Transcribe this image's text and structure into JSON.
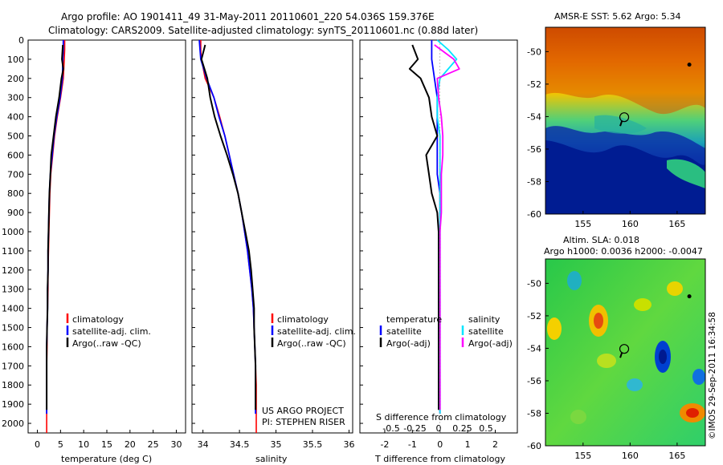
{
  "header": {
    "line1": "Argo profile: AO 1901411_49 31-May-2011 20110601_220 54.036S 159.376E",
    "line2": "Climatology: CARS2009. Satellite-adjusted climatology: synTS_20110601.nc (0.88d later)"
  },
  "colors": {
    "climatology": "#ff0000",
    "satellite": "#0000ff",
    "argo": "#000000",
    "sal_satellite": "#00e5ff",
    "sal_argo": "#ff00ff"
  },
  "chart_data": [
    {
      "type": "line",
      "title": "",
      "xlabel": "temperature (deg C)",
      "ylabel": "",
      "xlim": [
        -2,
        32
      ],
      "ylim": [
        2050,
        0
      ],
      "xticks": [
        "0",
        "5",
        "10",
        "15",
        "20",
        "25",
        "30"
      ],
      "yticks": [
        "0",
        "100",
        "200",
        "300",
        "400",
        "500",
        "600",
        "700",
        "800",
        "900",
        "1000",
        "1100",
        "1200",
        "1300",
        "1400",
        "1500",
        "1600",
        "1700",
        "1800",
        "1900",
        "2000"
      ],
      "legend": [
        "climatology",
        "satellite-adj. clim.",
        "Argo(..raw -QC)"
      ],
      "series": [
        {
          "name": "climatology",
          "x": [
            5.9,
            5.9,
            5.8,
            5.6,
            5.0,
            4.3,
            3.7,
            3.3,
            2.9,
            2.7,
            2.6,
            2.5,
            2.4,
            2.3,
            2.3,
            2.2,
            2.1,
            2.1,
            2.0,
            2.0,
            2.0
          ],
          "y": [
            0,
            50,
            100,
            200,
            300,
            400,
            500,
            600,
            700,
            800,
            900,
            1000,
            1100,
            1200,
            1300,
            1400,
            1500,
            1600,
            1700,
            1800,
            2050
          ]
        },
        {
          "name": "satellite-adj. clim.",
          "x": [
            5.6,
            5.6,
            5.5,
            5.4,
            4.9,
            4.2,
            3.6,
            3.2,
            2.8,
            2.6,
            2.5,
            2.4,
            2.3,
            2.3,
            2.2,
            2.2,
            2.1,
            2.0,
            2.0,
            2.0,
            2.0
          ],
          "y": [
            0,
            50,
            100,
            200,
            300,
            400,
            500,
            600,
            700,
            800,
            900,
            1000,
            1100,
            1200,
            1300,
            1400,
            1500,
            1600,
            1700,
            1800,
            1950
          ]
        },
        {
          "name": "Argo(..raw -QC)",
          "x": [
            5.5,
            5.3,
            5.6,
            5.2,
            4.7,
            4.0,
            3.5,
            3.0,
            2.8,
            2.6,
            2.5,
            2.4,
            2.3,
            2.3,
            2.2,
            2.2,
            2.1,
            2.0,
            2.0,
            2.0
          ],
          "y": [
            25,
            100,
            150,
            200,
            300,
            400,
            500,
            600,
            700,
            800,
            900,
            1000,
            1100,
            1200,
            1300,
            1400,
            1500,
            1600,
            1700,
            1930
          ]
        }
      ]
    },
    {
      "type": "line",
      "title": "",
      "xlabel": "salinity",
      "ylabel": "",
      "xlim": [
        33.85,
        36.05
      ],
      "ylim": [
        2050,
        0
      ],
      "xticks": [
        "34",
        "34.5",
        "35",
        "35.5",
        "36"
      ],
      "legend": [
        "climatology",
        "satellite-adj. clim.",
        "Argo(..raw -QC)"
      ],
      "annotations": [
        "US ARGO PROJECT",
        "PI: STEPHEN RISER"
      ],
      "series": [
        {
          "name": "climatology",
          "x": [
            33.97,
            33.97,
            33.98,
            34.03,
            34.15,
            34.23,
            34.3,
            34.36,
            34.42,
            34.48,
            34.53,
            34.57,
            34.61,
            34.64,
            34.67,
            34.69,
            34.7,
            34.71,
            34.72,
            34.73,
            34.73
          ],
          "y": [
            0,
            50,
            100,
            200,
            300,
            400,
            500,
            600,
            700,
            800,
            900,
            1000,
            1100,
            1200,
            1300,
            1400,
            1500,
            1600,
            1700,
            1800,
            2050
          ]
        },
        {
          "name": "satellite-adj. clim.",
          "x": [
            33.95,
            33.96,
            33.97,
            34.05,
            34.15,
            34.22,
            34.3,
            34.36,
            34.42,
            34.48,
            34.53,
            34.57,
            34.61,
            34.64,
            34.67,
            34.69,
            34.7,
            34.71,
            34.72,
            34.72,
            34.72
          ],
          "y": [
            0,
            50,
            100,
            200,
            300,
            400,
            500,
            600,
            700,
            800,
            900,
            1000,
            1100,
            1200,
            1300,
            1400,
            1500,
            1600,
            1700,
            1800,
            1950
          ]
        },
        {
          "name": "Argo(..raw -QC)",
          "x": [
            34.03,
            33.98,
            34.02,
            34.06,
            34.1,
            34.16,
            34.24,
            34.33,
            34.41,
            34.48,
            34.53,
            34.58,
            34.63,
            34.66,
            34.68,
            34.7,
            34.7,
            34.71,
            34.72,
            34.72
          ],
          "y": [
            25,
            100,
            150,
            200,
            300,
            400,
            500,
            600,
            700,
            800,
            900,
            1000,
            1100,
            1200,
            1300,
            1400,
            1500,
            1600,
            1700,
            1930
          ]
        }
      ]
    },
    {
      "type": "line",
      "title": "",
      "xlabel": "T difference from climatology",
      "xlabel2": "S difference from climatology",
      "ylabel": "",
      "xlim": [
        -2.9,
        2.8
      ],
      "ylim": [
        2050,
        0
      ],
      "xticks": [
        "-2",
        "-1",
        "0",
        "1",
        "2"
      ],
      "xticks2": [
        "-0.5",
        "-0.25",
        "0",
        "0.25",
        "0.5"
      ],
      "legend_titles": [
        "temperature",
        "salinity"
      ],
      "legend": [
        "satellite",
        "Argo(-adj)",
        "satellite",
        "Argo(-adj)"
      ],
      "series": [
        {
          "name": "satellite",
          "x": [
            -0.3,
            -0.3,
            -0.3,
            -0.2,
            -0.1,
            -0.1,
            -0.1,
            -0.1,
            -0.1,
            0,
            0,
            0,
            0,
            0,
            0,
            0,
            0,
            0,
            0,
            0
          ],
          "y": [
            0,
            50,
            100,
            200,
            300,
            400,
            500,
            600,
            700,
            800,
            900,
            1000,
            1100,
            1200,
            1300,
            1400,
            1500,
            1600,
            1700,
            1950
          ]
        },
        {
          "name": "Argo(-adj)",
          "x": [
            -1.0,
            -0.8,
            -1.1,
            -0.7,
            -0.4,
            -0.3,
            -0.1,
            -0.5,
            -0.4,
            -0.3,
            -0.1,
            -0.05,
            -0.05,
            -0.05,
            -0.05,
            -0.05,
            -0.05,
            -0.05,
            -0.05,
            -0.05
          ],
          "y": [
            25,
            100,
            150,
            200,
            300,
            400,
            500,
            600,
            700,
            800,
            900,
            1000,
            1100,
            1200,
            1300,
            1400,
            1500,
            1600,
            1700,
            1930
          ]
        },
        {
          "name": "satellite",
          "x": [
            -0.1,
            0.3,
            0.6,
            0.0,
            -0.1,
            -0.1,
            0.0,
            0.0,
            0.0,
            0.0,
            0.0,
            0.0,
            0.0,
            0.0,
            0.0,
            0.0,
            0.0,
            0.0,
            0.0,
            0.0
          ],
          "y": [
            0,
            50,
            100,
            200,
            300,
            400,
            500,
            600,
            700,
            800,
            900,
            1000,
            1100,
            1200,
            1300,
            1400,
            1500,
            1600,
            1700,
            1950
          ]
        },
        {
          "name": "Argo(-adj)",
          "x": [
            -0.2,
            0.5,
            0.7,
            -0.1,
            -0.05,
            0.05,
            0.1,
            0.1,
            0.05,
            0.05,
            0.05,
            0.0,
            0.0,
            0.0,
            0.0,
            0.0,
            0.0,
            0.0,
            0.0,
            0.0
          ],
          "y": [
            25,
            100,
            150,
            200,
            300,
            400,
            500,
            600,
            700,
            800,
            900,
            1000,
            1100,
            1200,
            1300,
            1400,
            1500,
            1600,
            1700,
            1930
          ]
        }
      ]
    },
    {
      "type": "heatmap",
      "title": "AMSR-E SST: 5.62 Argo: 5.34",
      "xlim": [
        151,
        168
      ],
      "ylim": [
        -60,
        -48.5
      ],
      "xticks": [
        "155",
        "160",
        "165"
      ],
      "yticks": [
        "-50",
        "-52",
        "-54",
        "-56",
        "-58",
        "-60"
      ],
      "float_position": [
        159.376,
        -54.036
      ]
    },
    {
      "type": "heatmap",
      "title": "Altim. SLA: 0.018",
      "subtitle": "Argo h1000: 0.0036 h2000: -0.0047",
      "xlim": [
        151,
        168
      ],
      "ylim": [
        -60,
        -48.5
      ],
      "xticks": [
        "155",
        "160",
        "165"
      ],
      "yticks": [
        "-50",
        "-52",
        "-54",
        "-56",
        "-58",
        "-60"
      ],
      "float_position": [
        159.376,
        -54.036
      ]
    }
  ],
  "footer": {
    "stamp": "©IMOS 29-Sep-2011 16:34:58"
  }
}
